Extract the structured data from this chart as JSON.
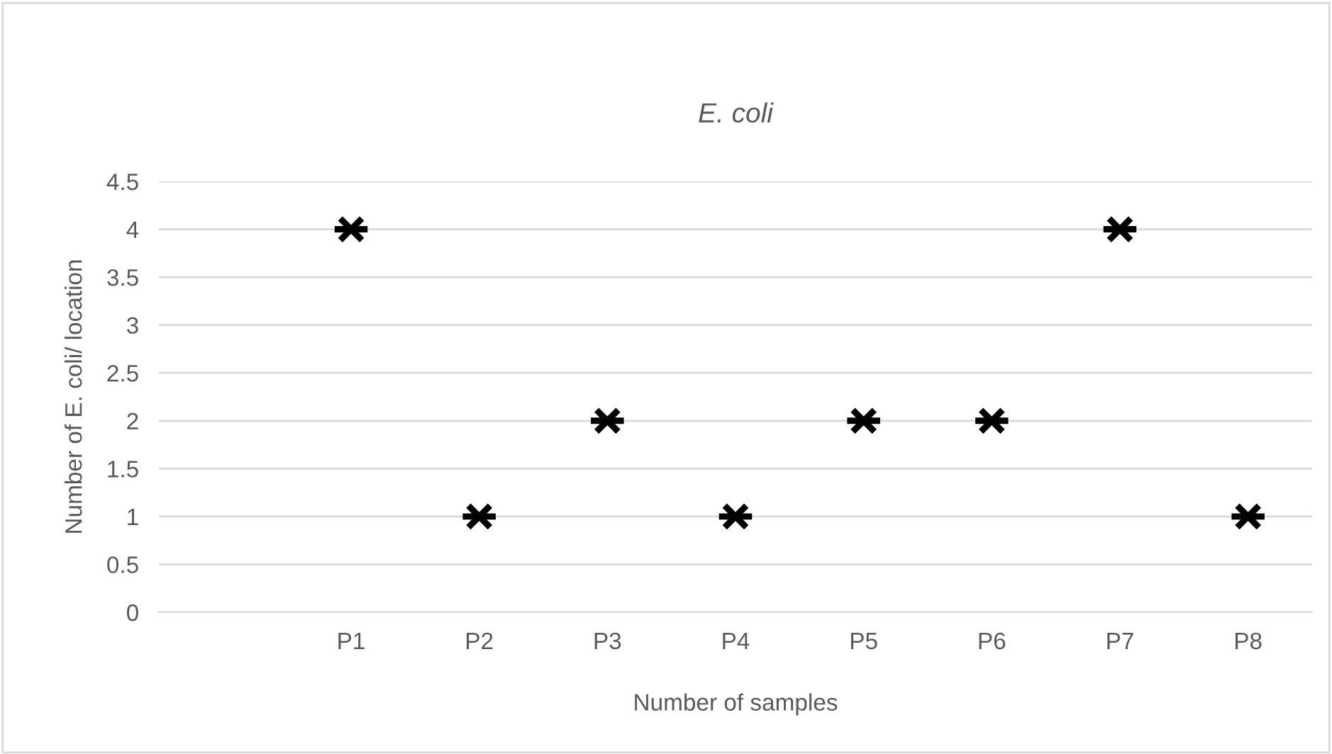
{
  "chart_data": {
    "type": "scatter",
    "title": "E. coli",
    "xlabel": "Number of samples",
    "ylabel": "Number of E. coli/ location",
    "categories": [
      null,
      "P1",
      "P2",
      "P3",
      "P4",
      "P5",
      "P6",
      "P7",
      "P8"
    ],
    "series": [
      {
        "color": "#000000",
        "values": [
          null,
          4,
          1,
          2,
          1,
          2,
          2,
          4,
          1
        ]
      }
    ],
    "marker": "cross",
    "ylim": [
      0,
      4.5
    ],
    "yticks": [
      0,
      0.5,
      1,
      1.5,
      2,
      2.5,
      3,
      3.5,
      4,
      4.5
    ],
    "grid": "y",
    "legend": false
  }
}
